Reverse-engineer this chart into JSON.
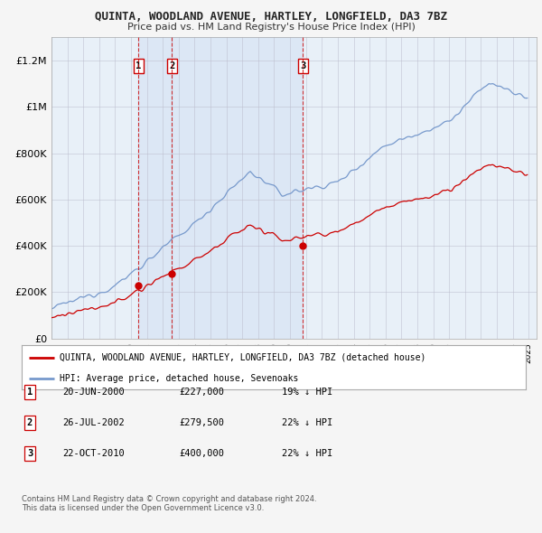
{
  "title": "QUINTA, WOODLAND AVENUE, HARTLEY, LONGFIELD, DA3 7BZ",
  "subtitle": "Price paid vs. HM Land Registry's House Price Index (HPI)",
  "ylim": [
    0,
    1300000
  ],
  "yticks": [
    0,
    200000,
    400000,
    600000,
    800000,
    1000000,
    1200000
  ],
  "ytick_labels": [
    "£0",
    "£200K",
    "£400K",
    "£600K",
    "£800K",
    "£1M",
    "£1.2M"
  ],
  "xmin": 1995,
  "xmax": 2025.5,
  "sale_dates_num": [
    2000.47,
    2002.57,
    2010.81
  ],
  "sale_prices": [
    227000,
    279500,
    400000
  ],
  "sale_labels": [
    "1",
    "2",
    "3"
  ],
  "vline_color": "#cc0000",
  "shade_color": "#ddeeff",
  "sale_marker_color": "#cc0000",
  "hpi_line_color": "#7799cc",
  "price_line_color": "#cc0000",
  "legend_entries": [
    "QUINTA, WOODLAND AVENUE, HARTLEY, LONGFIELD, DA3 7BZ (detached house)",
    "HPI: Average price, detached house, Sevenoaks"
  ],
  "table_rows": [
    [
      "1",
      "20-JUN-2000",
      "£227,000",
      "19% ↓ HPI"
    ],
    [
      "2",
      "26-JUL-2002",
      "£279,500",
      "22% ↓ HPI"
    ],
    [
      "3",
      "22-OCT-2010",
      "£400,000",
      "22% ↓ HPI"
    ]
  ],
  "footnote": "Contains HM Land Registry data © Crown copyright and database right 2024.\nThis data is licensed under the Open Government Licence v3.0.",
  "background_color": "#f5f5f5",
  "plot_bg_color": "#e8f0f8",
  "grid_color": "#bbbbcc"
}
